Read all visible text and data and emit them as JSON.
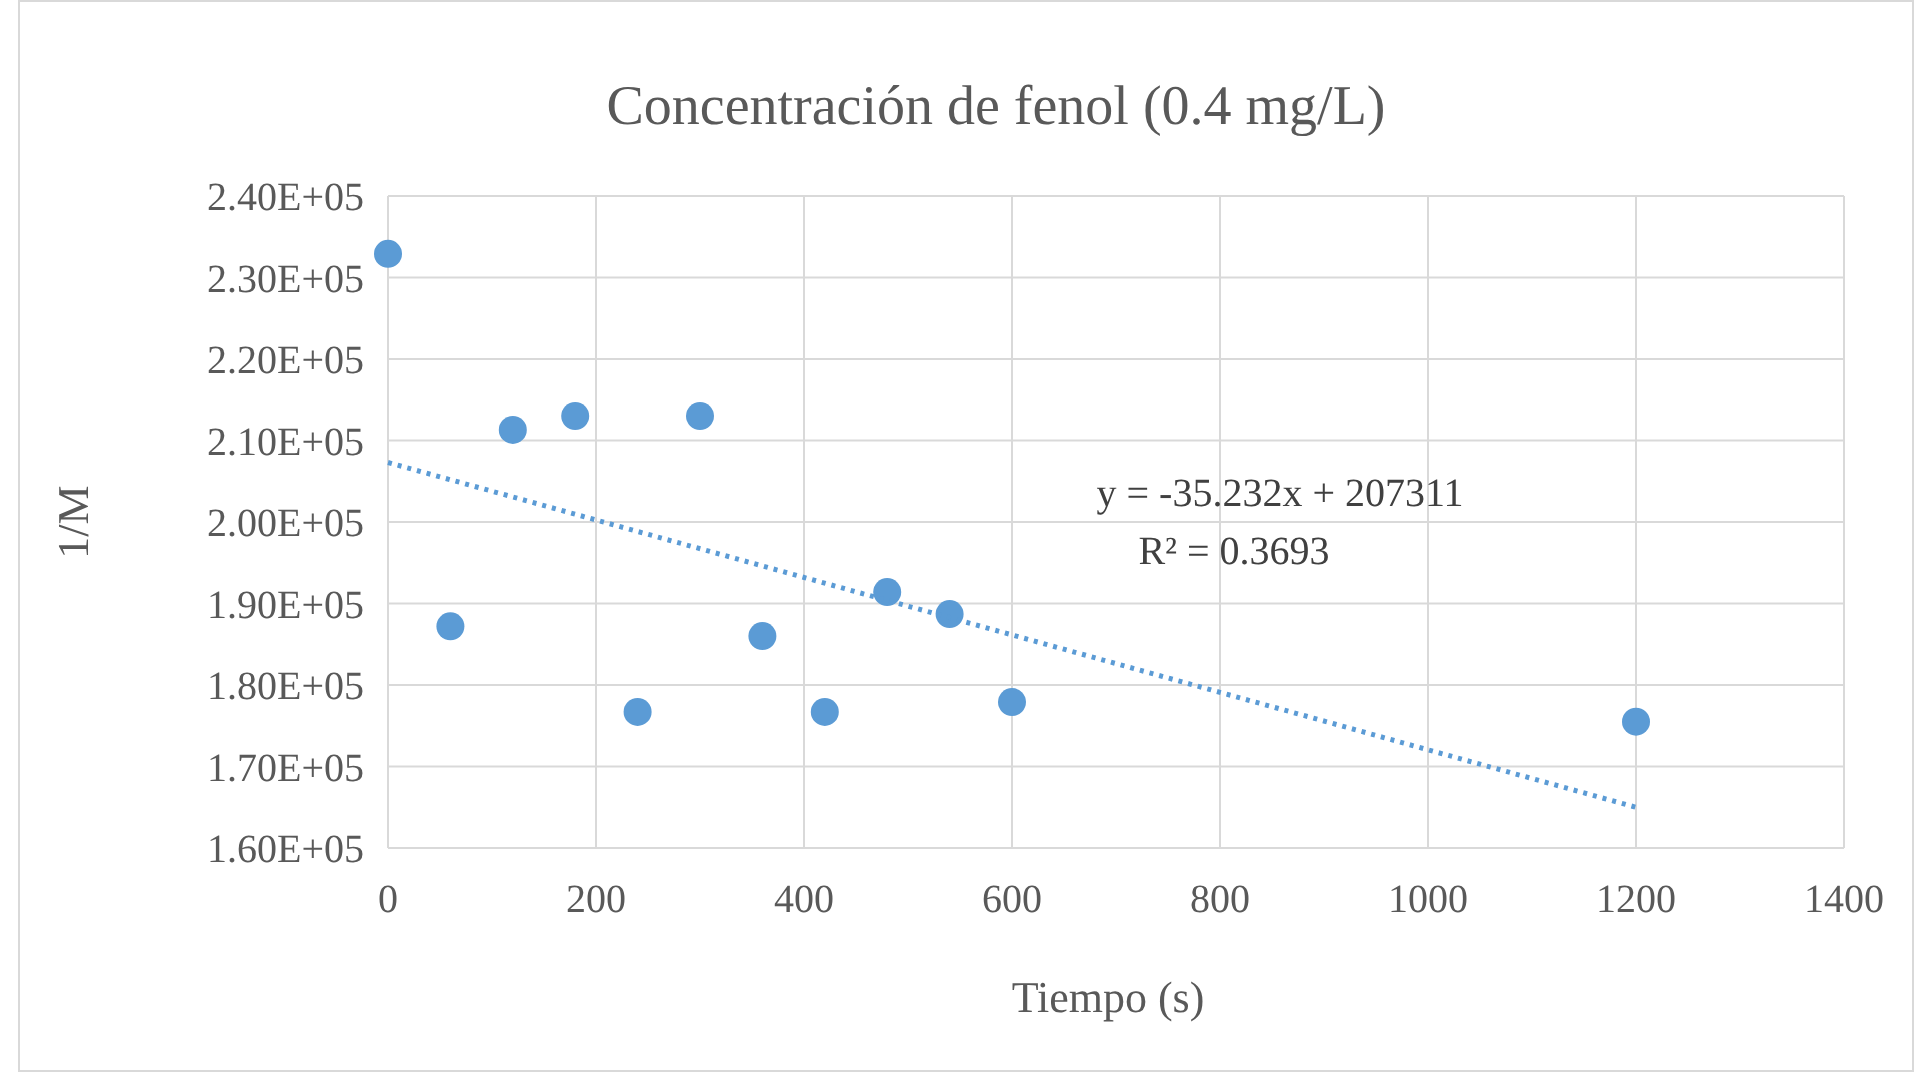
{
  "chart_data": {
    "type": "scatter",
    "title": "Concentración de fenol (0.4 mg/L)",
    "xlabel": "Tiempo (s)",
    "ylabel": "1/M",
    "x": [
      0,
      60,
      120,
      180,
      240,
      300,
      360,
      420,
      480,
      540,
      600,
      1200
    ],
    "series": [
      {
        "color": "#5b9bd5",
        "marker": "circle",
        "values": [
          232900,
          187200,
          211300,
          213000,
          176700,
          213000,
          186000,
          176700,
          191400,
          188700,
          177900,
          175500
        ]
      },
      {
        "type": "line",
        "color": "#5b9bd5",
        "marker": "none",
        "line_style": "dotted",
        "x": [
          0,
          1200
        ],
        "values": [
          207300,
          165000
        ]
      }
    ],
    "xlim": [
      0,
      1400
    ],
    "xticks": [
      0,
      200,
      400,
      600,
      800,
      1000,
      1200,
      1400
    ],
    "ylim": [
      160000,
      240000
    ],
    "yticks": [
      {
        "value": 160000,
        "label": "1.60E+05"
      },
      {
        "value": 170000,
        "label": "1.70E+05"
      },
      {
        "value": 180000,
        "label": "1.80E+05"
      },
      {
        "value": 190000,
        "label": "1.90E+05"
      },
      {
        "value": 200000,
        "label": "2.00E+05"
      },
      {
        "value": 210000,
        "label": "2.10E+05"
      },
      {
        "value": 220000,
        "label": "2.20E+05"
      },
      {
        "value": 230000,
        "label": "2.30E+05"
      },
      {
        "value": 240000,
        "label": "2.40E+05"
      }
    ],
    "grid": true,
    "annotations": [
      "y = -35.232x + 207311",
      "R² = 0.3693"
    ]
  }
}
